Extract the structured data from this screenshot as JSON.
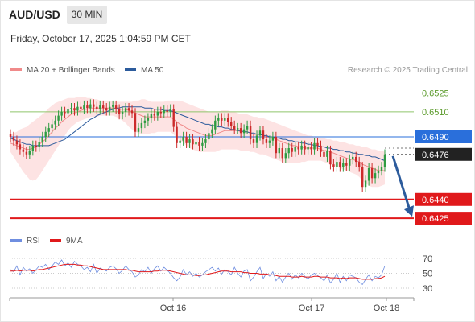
{
  "header": {
    "symbol": "AUD/USD",
    "timeframe": "30 MIN",
    "datetime": "Friday, October 17, 2025 1:04:59 PM CET"
  },
  "legend": {
    "ma20": "MA 20 + Bollinger Bands",
    "ma50": "MA 50",
    "rsi": "RSI",
    "rsi_ma": "9MA"
  },
  "copyright": "Research © 2025 Trading Central",
  "colors": {
    "up_candle": "#2e9c41",
    "down_candle": "#cc2a2a",
    "bollinger_fill": "#fde3e3",
    "ma20": "#f08a8a",
    "ma50": "#2c5b9c",
    "resistance": "#8fc56b",
    "pivot": "#2a6fdb",
    "support": "#e0191b",
    "arrow": "#2c5b9c",
    "rsi": "#6f8ee0",
    "rsi_ma": "#e0191b"
  },
  "chart_data": {
    "type": "candlestick",
    "instrument": "AUD/USD",
    "interval": "30 MIN",
    "ylim": [
      0.6418,
      0.6535
    ],
    "price_levels": [
      {
        "label": "0.6525",
        "value": 0.6525,
        "kind": "resistance"
      },
      {
        "label": "0.6510",
        "value": 0.651,
        "kind": "resistance"
      },
      {
        "label": "0.6490",
        "value": 0.649,
        "kind": "pivot"
      },
      {
        "label": "0.6476",
        "value": 0.6476,
        "kind": "last"
      },
      {
        "label": "0.6440",
        "value": 0.644,
        "kind": "support"
      },
      {
        "label": "0.6425",
        "value": 0.6425,
        "kind": "support"
      }
    ],
    "x_ticks": [
      "Oct 16",
      "Oct 17",
      "Oct 18"
    ],
    "closes": [
      0.649,
      0.6487,
      0.6484,
      0.648,
      0.6478,
      0.6476,
      0.6479,
      0.6483,
      0.6482,
      0.6486,
      0.649,
      0.6494,
      0.6497,
      0.65,
      0.6503,
      0.6507,
      0.651,
      0.6509,
      0.6512,
      0.6513,
      0.6511,
      0.6514,
      0.6512,
      0.6515,
      0.6513,
      0.6516,
      0.6514,
      0.6512,
      0.6515,
      0.6513,
      0.6511,
      0.6514,
      0.6515,
      0.6512,
      0.6508,
      0.651,
      0.6513,
      0.6511,
      0.6509,
      0.6494,
      0.6497,
      0.6501,
      0.6503,
      0.6505,
      0.6508,
      0.6507,
      0.651,
      0.6509,
      0.6511,
      0.651,
      0.6512,
      0.6498,
      0.6485,
      0.6487,
      0.649,
      0.6485,
      0.6488,
      0.6484,
      0.6486,
      0.6483,
      0.6485,
      0.6488,
      0.6493,
      0.6496,
      0.6503,
      0.6505,
      0.6503,
      0.6505,
      0.6502,
      0.6499,
      0.6496,
      0.6497,
      0.6493,
      0.6496,
      0.6499,
      0.6488,
      0.6485,
      0.6491,
      0.6495,
      0.6488,
      0.6485,
      0.6487,
      0.649,
      0.6477,
      0.6481,
      0.6473,
      0.6477,
      0.6481,
      0.6478,
      0.6482,
      0.648,
      0.6483,
      0.648,
      0.6482,
      0.648,
      0.6485,
      0.6483,
      0.6478,
      0.6474,
      0.6479,
      0.6468,
      0.6466,
      0.647,
      0.6466,
      0.6469,
      0.6467,
      0.6472,
      0.6474,
      0.647,
      0.6466,
      0.645,
      0.6455,
      0.6465,
      0.6457,
      0.6461,
      0.6463,
      0.6466,
      0.6476
    ],
    "ma20": [
      0.6485,
      0.6484,
      0.6483,
      0.6482,
      0.6481,
      0.648,
      0.648,
      0.6481,
      0.6482,
      0.6484,
      0.6486,
      0.6488,
      0.6491,
      0.6494,
      0.6497,
      0.6499,
      0.6502,
      0.6504,
      0.6506,
      0.6508,
      0.6509,
      0.651,
      0.6511,
      0.6512,
      0.6512,
      0.6513,
      0.6513,
      0.6513,
      0.6513,
      0.6513,
      0.6513,
      0.6513,
      0.6513,
      0.6513,
      0.6512,
      0.6512,
      0.6512,
      0.6511,
      0.651,
      0.6509,
      0.6508,
      0.6507,
      0.6506,
      0.6506,
      0.6506,
      0.6506,
      0.6506,
      0.6506,
      0.6506,
      0.6506,
      0.6506,
      0.6504,
      0.6502,
      0.65,
      0.6499,
      0.6497,
      0.6496,
      0.6495,
      0.6494,
      0.6493,
      0.6492,
      0.6491,
      0.6491,
      0.6491,
      0.6492,
      0.6493,
      0.6494,
      0.6495,
      0.6495,
      0.6495,
      0.6495,
      0.6495,
      0.6494,
      0.6494,
      0.6494,
      0.6493,
      0.6492,
      0.6492,
      0.6492,
      0.6491,
      0.649,
      0.6489,
      0.6489,
      0.6488,
      0.6487,
      0.6486,
      0.6485,
      0.6484,
      0.6483,
      0.6483,
      0.6482,
      0.6482,
      0.6481,
      0.6481,
      0.6481,
      0.6481,
      0.6481,
      0.648,
      0.6479,
      0.6479,
      0.6478,
      0.6477,
      0.6476,
      0.6475,
      0.6474,
      0.6473,
      0.6472,
      0.6472,
      0.6471,
      0.647,
      0.6468,
      0.6467,
      0.6466,
      0.6465,
      0.6464,
      0.6463,
      0.6463,
      0.6463
    ],
    "bb_upper": [
      0.6492,
      0.6493,
      0.6494,
      0.6496,
      0.6497,
      0.6498,
      0.65,
      0.6502,
      0.6504,
      0.6506,
      0.6508,
      0.651,
      0.6513,
      0.6515,
      0.6517,
      0.6518,
      0.6519,
      0.652,
      0.6521,
      0.6521,
      0.6521,
      0.6522,
      0.6522,
      0.6522,
      0.6521,
      0.6521,
      0.652,
      0.652,
      0.6519,
      0.6519,
      0.6519,
      0.6519,
      0.6518,
      0.6518,
      0.6518,
      0.6518,
      0.6518,
      0.6518,
      0.6518,
      0.6519,
      0.6519,
      0.652,
      0.652,
      0.6519,
      0.6518,
      0.6518,
      0.6518,
      0.6518,
      0.6518,
      0.6519,
      0.6519,
      0.6519,
      0.6519,
      0.6519,
      0.6518,
      0.6517,
      0.6516,
      0.6515,
      0.6514,
      0.6513,
      0.6512,
      0.6511,
      0.651,
      0.651,
      0.651,
      0.651,
      0.6511,
      0.6511,
      0.6511,
      0.651,
      0.651,
      0.6509,
      0.6508,
      0.6508,
      0.6508,
      0.6507,
      0.6506,
      0.6506,
      0.6505,
      0.6505,
      0.6504,
      0.6503,
      0.6502,
      0.6501,
      0.65,
      0.6499,
      0.6498,
      0.6497,
      0.6496,
      0.6495,
      0.6494,
      0.6493,
      0.6492,
      0.6491,
      0.6491,
      0.649,
      0.649,
      0.6489,
      0.6489,
      0.6488,
      0.6488,
      0.6487,
      0.6487,
      0.6486,
      0.6486,
      0.6485,
      0.6484,
      0.6484,
      0.6483,
      0.6483,
      0.6482,
      0.6482,
      0.6481,
      0.648,
      0.648,
      0.6479,
      0.6479,
      0.6478
    ],
    "bb_lower": [
      0.6478,
      0.6474,
      0.647,
      0.6466,
      0.6462,
      0.6459,
      0.6456,
      0.6455,
      0.6456,
      0.6459,
      0.6463,
      0.6467,
      0.6471,
      0.6475,
      0.6479,
      0.6483,
      0.6487,
      0.6491,
      0.6495,
      0.6498,
      0.65,
      0.6502,
      0.6503,
      0.6504,
      0.6505,
      0.6506,
      0.6506,
      0.6506,
      0.6507,
      0.6507,
      0.6507,
      0.6507,
      0.6507,
      0.6506,
      0.6505,
      0.6503,
      0.6501,
      0.6498,
      0.6496,
      0.6494,
      0.6493,
      0.6492,
      0.6492,
      0.6492,
      0.6493,
      0.6493,
      0.6494,
      0.6494,
      0.6494,
      0.6494,
      0.6494,
      0.6492,
      0.6489,
      0.6487,
      0.6485,
      0.6483,
      0.6481,
      0.648,
      0.6479,
      0.6478,
      0.6478,
      0.6478,
      0.6478,
      0.6478,
      0.6478,
      0.6479,
      0.648,
      0.648,
      0.648,
      0.648,
      0.648,
      0.648,
      0.6479,
      0.6479,
      0.6479,
      0.6478,
      0.6478,
      0.6477,
      0.6476,
      0.6476,
      0.6475,
      0.6474,
      0.6473,
      0.6472,
      0.6471,
      0.647,
      0.6469,
      0.6469,
      0.6469,
      0.6469,
      0.6469,
      0.647,
      0.647,
      0.6471,
      0.6471,
      0.6471,
      0.6471,
      0.6471,
      0.647,
      0.6469,
      0.6468,
      0.6467,
      0.6466,
      0.6465,
      0.6464,
      0.6463,
      0.6462,
      0.6461,
      0.646,
      0.6458,
      0.6455,
      0.6453,
      0.6451,
      0.645,
      0.645,
      0.645,
      0.6451,
      0.6452
    ],
    "ma50": [
      0.6489,
      0.6488,
      0.6487,
      0.6486,
      0.6485,
      0.6484,
      0.6484,
      0.6483,
      0.6483,
      0.6483,
      0.6483,
      0.6483,
      0.6483,
      0.6484,
      0.6485,
      0.6486,
      0.6487,
      0.6488,
      0.649,
      0.6492,
      0.6494,
      0.6496,
      0.6498,
      0.65,
      0.6502,
      0.6504,
      0.6505,
      0.6507,
      0.6508,
      0.6509,
      0.651,
      0.6511,
      0.6512,
      0.6513,
      0.6513,
      0.6514,
      0.6514,
      0.6514,
      0.6514,
      0.6514,
      0.6514,
      0.6514,
      0.6513,
      0.6513,
      0.6513,
      0.6512,
      0.6512,
      0.6512,
      0.6511,
      0.6511,
      0.6511,
      0.651,
      0.6509,
      0.6508,
      0.6507,
      0.6506,
      0.6505,
      0.6504,
      0.6503,
      0.6502,
      0.6501,
      0.65,
      0.65,
      0.6499,
      0.6499,
      0.6498,
      0.6498,
      0.6497,
      0.6497,
      0.6496,
      0.6496,
      0.6495,
      0.6495,
      0.6494,
      0.6494,
      0.6493,
      0.6493,
      0.6492,
      0.6492,
      0.6491,
      0.6491,
      0.649,
      0.649,
      0.6489,
      0.6489,
      0.6488,
      0.6488,
      0.6487,
      0.6487,
      0.6486,
      0.6486,
      0.6485,
      0.6485,
      0.6484,
      0.6484,
      0.6483,
      0.6483,
      0.6482,
      0.6482,
      0.6481,
      0.6481,
      0.648,
      0.648,
      0.6479,
      0.6479,
      0.6478,
      0.6478,
      0.6477,
      0.6477,
      0.6476,
      0.6476,
      0.6475,
      0.6475,
      0.6474,
      0.6474,
      0.6473,
      0.6472,
      0.6471
    ],
    "projection": {
      "from": 0.6476,
      "to": 0.6425
    },
    "rsi": {
      "ylim": [
        25,
        75
      ],
      "ticks": [
        "70",
        "50",
        "30"
      ],
      "values": [
        55,
        52,
        60,
        48,
        58,
        53,
        56,
        50,
        55,
        60,
        58,
        62,
        55,
        60,
        65,
        62,
        68,
        60,
        64,
        58,
        66,
        62,
        60,
        55,
        58,
        52,
        62,
        50,
        57,
        55,
        53,
        58,
        60,
        56,
        50,
        54,
        60,
        55,
        52,
        45,
        48,
        55,
        52,
        58,
        50,
        56,
        60,
        53,
        58,
        54,
        50,
        44,
        40,
        45,
        55,
        48,
        52,
        46,
        50,
        45,
        48,
        52,
        55,
        58,
        53,
        57,
        49,
        55,
        52,
        48,
        58,
        50,
        45,
        53,
        55,
        40,
        45,
        52,
        58,
        43,
        50,
        46,
        52,
        40,
        46,
        38,
        45,
        50,
        42,
        48,
        44,
        50,
        46,
        42,
        48,
        50,
        47,
        44,
        40,
        48,
        37,
        42,
        50,
        38,
        46,
        40,
        48,
        46,
        44,
        38,
        35,
        42,
        48,
        40,
        46,
        44,
        48,
        60
      ],
      "ma": [
        53,
        53,
        54,
        53,
        54,
        54,
        54,
        53,
        54,
        55,
        55,
        56,
        57,
        58,
        59,
        60,
        61,
        62,
        62,
        62,
        62,
        61,
        61,
        60,
        60,
        59,
        58,
        57,
        56,
        55,
        55,
        55,
        55,
        55,
        55,
        55,
        55,
        54,
        54,
        53,
        52,
        52,
        52,
        52,
        52,
        53,
        53,
        54,
        54,
        54,
        53,
        52,
        51,
        50,
        49,
        48,
        48,
        48,
        47,
        47,
        48,
        48,
        49,
        50,
        51,
        52,
        53,
        53,
        53,
        52,
        52,
        52,
        52,
        51,
        51,
        50,
        50,
        50,
        49,
        49,
        49,
        48,
        48,
        47,
        46,
        46,
        46,
        46,
        45,
        45,
        45,
        46,
        45,
        45,
        45,
        46,
        46,
        45,
        45,
        45,
        44,
        44,
        44,
        43,
        44,
        43,
        44,
        44,
        44,
        43,
        42,
        42,
        42,
        42,
        43,
        43,
        44,
        46
      ]
    }
  }
}
